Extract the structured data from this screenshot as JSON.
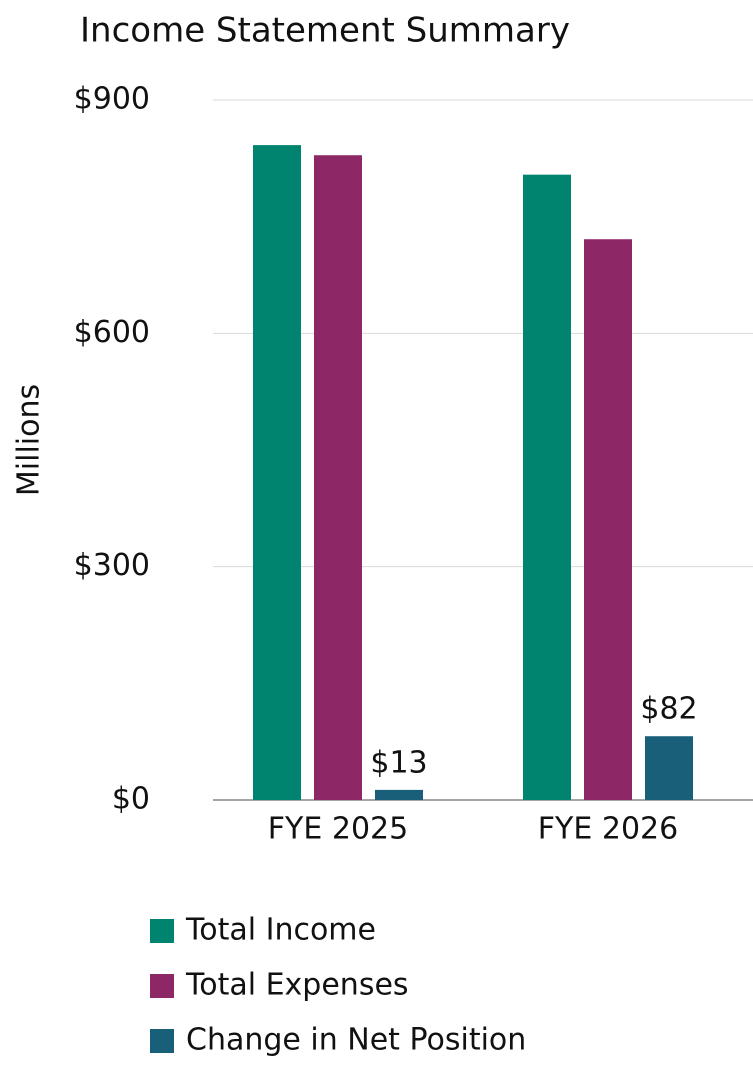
{
  "chart_data": {
    "type": "bar",
    "title": "Income Statement Summary",
    "y_label": "Millions",
    "categories": [
      "FYE 2025",
      "FYE 2026"
    ],
    "series": [
      {
        "name": "Total Income",
        "color": "#008470",
        "values": [
          842,
          804
        ]
      },
      {
        "name": "Total Expenses",
        "color": "#8e2766",
        "values": [
          829,
          721
        ]
      },
      {
        "name": "Change in Net Position",
        "color": "#1a5f7a",
        "values": [
          13,
          82
        ],
        "value_labels": [
          "$13",
          "$82"
        ]
      }
    ],
    "ylim": [
      0,
      900
    ],
    "yticks": [
      {
        "value": 0,
        "label": "$0"
      },
      {
        "value": 300,
        "label": "$300"
      },
      {
        "value": 600,
        "label": "$600"
      },
      {
        "value": 900,
        "label": "$900"
      }
    ],
    "grid": true,
    "legend": "bottom"
  }
}
